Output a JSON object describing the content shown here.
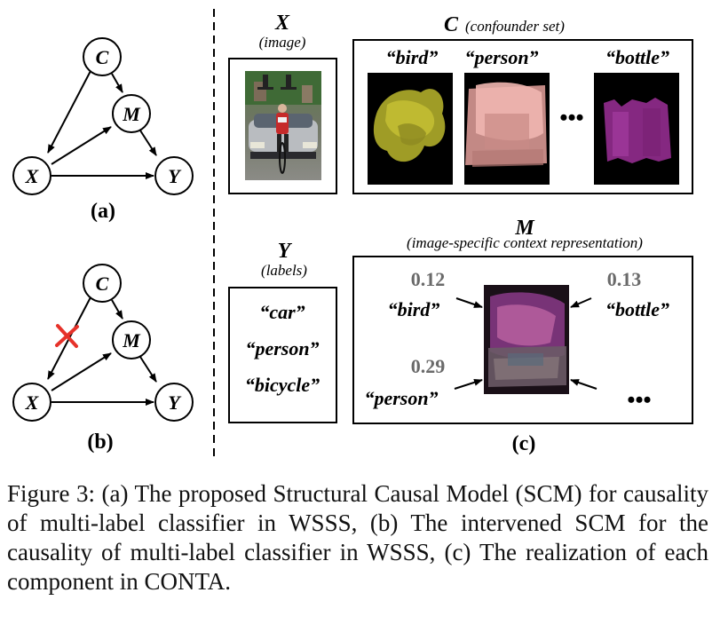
{
  "graph_a": {
    "nodes": {
      "c": "C",
      "m": "M",
      "x": "X",
      "y": "Y"
    },
    "label": "(a)"
  },
  "graph_b": {
    "nodes": {
      "c": "C",
      "m": "M",
      "x": "X",
      "y": "Y"
    },
    "label": "(b)"
  },
  "panel_x": {
    "symbol": "X",
    "subtitle": "(image)"
  },
  "panel_c": {
    "symbol": "C",
    "subtitle": "(confounder set)",
    "items": [
      "“bird”",
      "“person”",
      "“bottle”"
    ],
    "ellipsis": "•••"
  },
  "panel_y": {
    "symbol": "Y",
    "subtitle": "(labels)",
    "labels": [
      "“car”",
      "“person”",
      "“bicycle”"
    ]
  },
  "panel_m": {
    "symbol": "M",
    "subtitle": "(image-specific context representation)",
    "weights": [
      {
        "value": "0.12",
        "label": "“bird”"
      },
      {
        "value": "0.13",
        "label": "“bottle”"
      },
      {
        "value": "0.29",
        "label": "“person”"
      }
    ],
    "ellipsis": "•••"
  },
  "panel_label_c": "(c)",
  "caption": "Figure 3: (a) The proposed Structural Causal Model (SCM) for causality of multi-label classifier in WSSS, (b) The intervened SCM for the causality of multi-label classifier in WSSS, (c) The realization of each component in CONTA.",
  "colors": {
    "bird_mask": "#b8b42a",
    "person_mask": "#e8a7a2",
    "bottle_mask": "#8a2a86",
    "intervention_cross": "#e6322a",
    "weight_text": "#6a6a6a"
  }
}
